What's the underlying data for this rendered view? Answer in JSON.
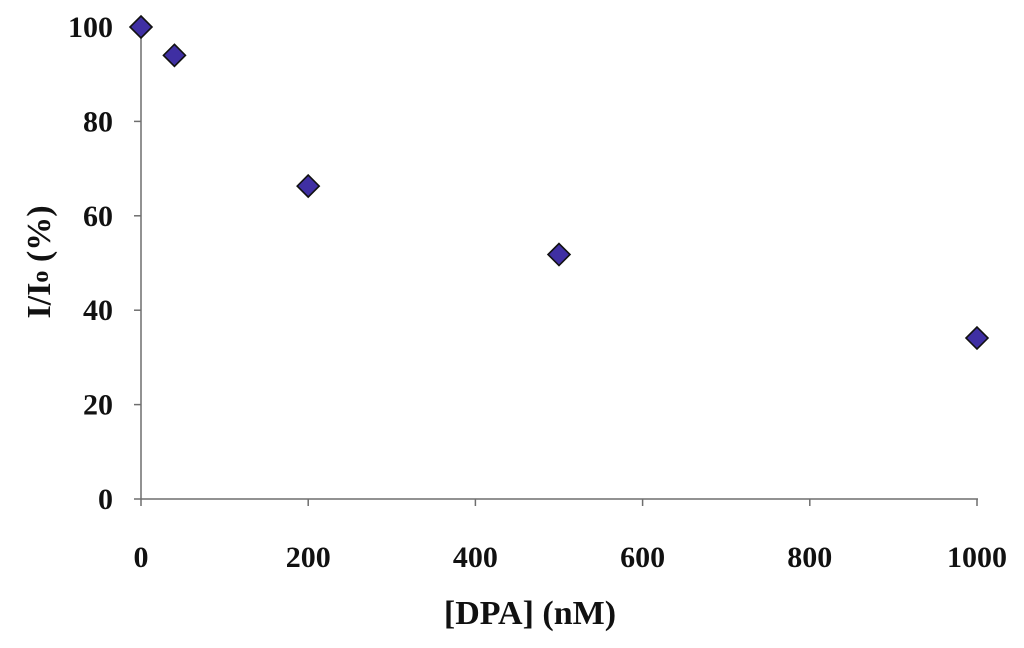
{
  "chart_data": {
    "type": "scatter",
    "title": "",
    "xlabel": "[DPA] (nM)",
    "ylabel_main": "I/I",
    "ylabel_sub": "o",
    "ylabel_suffix": " (%)",
    "xlim": [
      0,
      1000
    ],
    "ylim": [
      0,
      100
    ],
    "x_ticks": [
      0,
      200,
      400,
      600,
      800,
      1000
    ],
    "y_ticks": [
      0,
      20,
      40,
      60,
      80,
      100
    ],
    "x_tick_labels": [
      "0",
      "200",
      "400",
      "600",
      "800",
      "1000"
    ],
    "y_tick_labels": [
      "0",
      "20",
      "40",
      "60",
      "80",
      "100"
    ],
    "grid": false,
    "legend": "none",
    "marker": "diamond",
    "marker_color": "#3f2fa3",
    "series": [
      {
        "x": [
          0,
          40,
          200,
          500,
          1000
        ],
        "y": [
          100,
          94,
          66.3,
          51.8,
          34.1
        ]
      }
    ]
  }
}
